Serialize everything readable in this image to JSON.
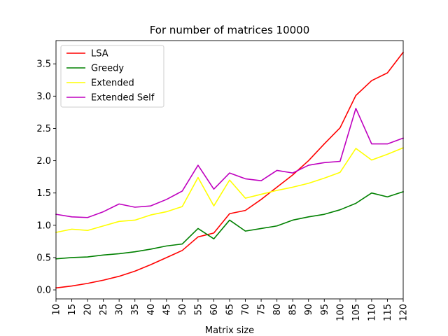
{
  "chart_data": {
    "type": "line",
    "title": "For number of matrices 10000",
    "xlabel": "Matrix size",
    "ylabel": "",
    "x": [
      10,
      15,
      20,
      25,
      30,
      35,
      40,
      45,
      50,
      55,
      60,
      65,
      70,
      75,
      80,
      85,
      90,
      95,
      100,
      105,
      110,
      115,
      120
    ],
    "xlim": [
      10,
      120
    ],
    "ylim": [
      -0.14,
      3.86
    ],
    "yticks": [
      0.0,
      0.5,
      1.0,
      1.5,
      2.0,
      2.5,
      3.0,
      3.5
    ],
    "ytick_labels": [
      "0.0",
      "0.5",
      "1.0",
      "1.5",
      "2.0",
      "2.5",
      "3.0",
      "3.5"
    ],
    "xtick_labels": [
      "10",
      "15",
      "20",
      "25",
      "30",
      "35",
      "40",
      "45",
      "50",
      "55",
      "60",
      "65",
      "70",
      "75",
      "80",
      "85",
      "90",
      "95",
      "100",
      "105",
      "110",
      "115",
      "120"
    ],
    "grid": false,
    "legend_position": "top-left",
    "series": [
      {
        "name": "LSA",
        "color": "#ff0000",
        "values": [
          0.03,
          0.06,
          0.1,
          0.15,
          0.21,
          0.29,
          0.39,
          0.5,
          0.61,
          0.82,
          0.88,
          1.18,
          1.23,
          1.4,
          1.59,
          1.78,
          2.0,
          2.26,
          2.51,
          3.01,
          3.24,
          3.36,
          3.68
        ]
      },
      {
        "name": "Greedy",
        "color": "#008000",
        "values": [
          0.48,
          0.5,
          0.51,
          0.54,
          0.56,
          0.59,
          0.63,
          0.68,
          0.71,
          0.95,
          0.79,
          1.08,
          0.91,
          0.95,
          0.99,
          1.08,
          1.13,
          1.17,
          1.24,
          1.34,
          1.5,
          1.44,
          1.52
        ]
      },
      {
        "name": "Extended",
        "color": "#ffff00",
        "values": [
          0.89,
          0.94,
          0.92,
          0.99,
          1.06,
          1.08,
          1.16,
          1.21,
          1.29,
          1.74,
          1.3,
          1.7,
          1.42,
          1.48,
          1.54,
          1.59,
          1.65,
          1.73,
          1.82,
          2.19,
          2.01,
          2.1,
          2.2
        ]
      },
      {
        "name": "Extended Self",
        "color": "#bf00bf",
        "values": [
          1.17,
          1.13,
          1.12,
          1.21,
          1.33,
          1.28,
          1.3,
          1.4,
          1.53,
          1.93,
          1.56,
          1.81,
          1.72,
          1.69,
          1.85,
          1.81,
          1.93,
          1.97,
          1.99,
          2.81,
          2.26,
          2.26,
          2.35
        ]
      }
    ]
  }
}
